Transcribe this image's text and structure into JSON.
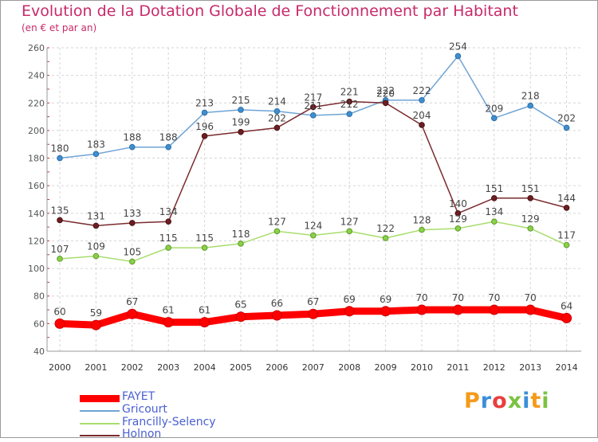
{
  "title": "Evolution de la Dotation Globale de Fonctionnement par Habitant",
  "subtitle": "(en € et par an)",
  "logo_text": "Proxiti",
  "chart_data": {
    "type": "line",
    "categories": [
      "2000",
      "2001",
      "2002",
      "2003",
      "2004",
      "2005",
      "2006",
      "2007",
      "2008",
      "2009",
      "2010",
      "2011",
      "2012",
      "2013",
      "2014"
    ],
    "ylim": [
      40,
      260
    ],
    "yticks": [
      40,
      60,
      80,
      100,
      120,
      140,
      160,
      180,
      200,
      220,
      240,
      260
    ],
    "grid": true,
    "legend_position": "bottom-left",
    "series": [
      {
        "name": "FAYET",
        "color": "#ff0000",
        "values": [
          60,
          59,
          67,
          61,
          61,
          65,
          66,
          67,
          69,
          69,
          70,
          70,
          70,
          70,
          64
        ]
      },
      {
        "name": "Gricourt",
        "color": "#6fa4d6",
        "values": [
          180,
          183,
          188,
          188,
          213,
          215,
          214,
          211,
          212,
          222,
          222,
          254,
          209,
          218,
          202
        ]
      },
      {
        "name": "Francilly-Selency",
        "color": "#a8dd6e",
        "values": [
          107,
          109,
          105,
          115,
          115,
          118,
          127,
          124,
          127,
          122,
          128,
          129,
          134,
          129,
          117
        ]
      },
      {
        "name": "Holnon",
        "color": "#7a2a2e",
        "values": [
          135,
          131,
          133,
          134,
          196,
          199,
          202,
          217,
          221,
          220,
          204,
          140,
          151,
          151,
          144
        ]
      }
    ],
    "data_labels": [
      [
        "60",
        "59",
        "67",
        "61",
        "61",
        "65",
        "66",
        "67",
        "69",
        "69",
        "70",
        "70",
        "70",
        "70",
        "64"
      ],
      [
        "180",
        "183",
        "188",
        "188",
        "213",
        "215",
        "214",
        "211",
        "212",
        "222",
        "222",
        "254",
        "209",
        "218",
        "202"
      ],
      [
        "107",
        "109",
        "105",
        "115",
        "115",
        "118",
        "127",
        "124",
        "127",
        "122",
        "128",
        "129",
        "134",
        "129",
        "117"
      ],
      [
        "135",
        "131",
        "133",
        "134",
        "196",
        "199",
        "202",
        "217",
        "221",
        "220",
        "204",
        "140",
        "151",
        "151",
        "144"
      ]
    ]
  }
}
